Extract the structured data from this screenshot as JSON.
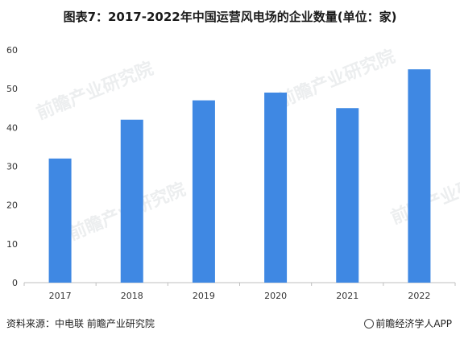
{
  "chart_data": {
    "type": "bar",
    "title": "图表7：2017-2022年中国运营风电场的企业数量(单位：家)",
    "categories": [
      "2017",
      "2018",
      "2019",
      "2020",
      "2021",
      "2022"
    ],
    "values": [
      32,
      42,
      47,
      49,
      45,
      55
    ],
    "ylim": [
      0,
      60
    ],
    "yticks": [
      0,
      10,
      20,
      30,
      40,
      50,
      60
    ],
    "grid": false,
    "bar_color": "#3f88e3"
  },
  "footer": {
    "source": "资料来源：中电联 前瞻产业研究院",
    "brand": "前瞻经济学人APP"
  },
  "watermark": {
    "text": "前瞻产业研究院"
  }
}
